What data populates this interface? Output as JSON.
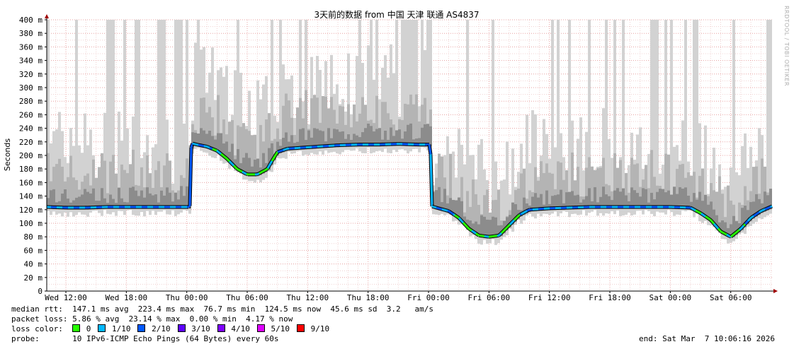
{
  "chart_data": {
    "type": "area",
    "title": "3天前的数据 from 中国 天津 联通 AS4837",
    "ylabel": "Seconds",
    "y_ticks": [
      {
        "v": 0,
        "label": "0"
      },
      {
        "v": 20,
        "label": "20 m"
      },
      {
        "v": 40,
        "label": "40 m"
      },
      {
        "v": 60,
        "label": "60 m"
      },
      {
        "v": 80,
        "label": "80 m"
      },
      {
        "v": 100,
        "label": "100 m"
      },
      {
        "v": 120,
        "label": "120 m"
      },
      {
        "v": 140,
        "label": "140 m"
      },
      {
        "v": 160,
        "label": "160 m"
      },
      {
        "v": 180,
        "label": "180 m"
      },
      {
        "v": 200,
        "label": "200 m"
      },
      {
        "v": 220,
        "label": "220 m"
      },
      {
        "v": 240,
        "label": "240 m"
      },
      {
        "v": 260,
        "label": "260 m"
      },
      {
        "v": 280,
        "label": "280 m"
      },
      {
        "v": 300,
        "label": "300 m"
      },
      {
        "v": 320,
        "label": "320 m"
      },
      {
        "v": 340,
        "label": "340 m"
      },
      {
        "v": 360,
        "label": "360 m"
      },
      {
        "v": 380,
        "label": "380 m"
      },
      {
        "v": 400,
        "label": "400 m"
      }
    ],
    "ylim": [
      0,
      400
    ],
    "x_ticks": [
      {
        "h": 0,
        "label": "Wed 12:00"
      },
      {
        "h": 6,
        "label": "Wed 18:00"
      },
      {
        "h": 12,
        "label": "Thu 00:00"
      },
      {
        "h": 18,
        "label": "Thu 06:00"
      },
      {
        "h": 24,
        "label": "Thu 12:00"
      },
      {
        "h": 30,
        "label": "Thu 18:00"
      },
      {
        "h": 36,
        "label": "Fri 00:00"
      },
      {
        "h": 42,
        "label": "Fri 06:00"
      },
      {
        "h": 48,
        "label": "Fri 12:00"
      },
      {
        "h": 54,
        "label": "Fri 18:00"
      },
      {
        "h": 60,
        "label": "Sat 00:00"
      },
      {
        "h": 66,
        "label": "Sat 06:00"
      }
    ],
    "xlim_hours": [
      -1.9,
      70.1
    ],
    "median_rtt_ms": [
      [
        -1.9,
        124
      ],
      [
        0,
        123
      ],
      [
        2,
        123
      ],
      [
        4,
        124
      ],
      [
        6,
        124
      ],
      [
        8,
        124
      ],
      [
        10,
        124
      ],
      [
        12.3,
        124
      ],
      [
        12.4,
        170
      ],
      [
        12.45,
        218
      ],
      [
        13,
        216
      ],
      [
        14,
        213
      ],
      [
        15,
        207
      ],
      [
        16,
        195
      ],
      [
        17,
        180
      ],
      [
        18,
        172
      ],
      [
        19,
        172
      ],
      [
        20,
        180
      ],
      [
        20.5,
        193
      ],
      [
        21,
        205
      ],
      [
        22,
        210
      ],
      [
        23,
        211
      ],
      [
        25,
        213
      ],
      [
        27,
        215
      ],
      [
        29,
        216
      ],
      [
        31,
        216
      ],
      [
        33,
        217
      ],
      [
        35,
        216
      ],
      [
        36.2,
        216
      ],
      [
        36.25,
        140
      ],
      [
        36.3,
        125
      ],
      [
        37,
        122
      ],
      [
        38,
        118
      ],
      [
        39,
        108
      ],
      [
        40,
        92
      ],
      [
        41,
        82
      ],
      [
        42,
        80
      ],
      [
        43,
        82
      ],
      [
        44,
        97
      ],
      [
        45,
        112
      ],
      [
        46,
        120
      ],
      [
        48,
        122
      ],
      [
        50,
        123
      ],
      [
        52,
        124
      ],
      [
        54,
        124
      ],
      [
        56,
        124
      ],
      [
        58,
        124
      ],
      [
        60,
        124
      ],
      [
        62,
        123
      ],
      [
        63,
        115
      ],
      [
        64,
        105
      ],
      [
        65,
        88
      ],
      [
        66,
        80
      ],
      [
        67,
        92
      ],
      [
        68,
        108
      ],
      [
        69,
        118
      ],
      [
        70.1,
        125
      ]
    ],
    "loss_green_ranges_hours": [
      [
        14.5,
        21
      ],
      [
        38.6,
        45
      ],
      [
        62.5,
        67.3
      ]
    ],
    "legend": [
      {
        "label": "0",
        "color": "#26ff00"
      },
      {
        "label": "1/10",
        "color": "#00b8ff"
      },
      {
        "label": "2/10",
        "color": "#0059ff"
      },
      {
        "label": "3/10",
        "color": "#5e00ff"
      },
      {
        "label": "4/10",
        "color": "#7e00ff"
      },
      {
        "label": "5/10",
        "color": "#dd00ff"
      },
      {
        "label": "9/10",
        "color": "#ff0000"
      }
    ],
    "watermark": "RRDTOOL / TOBI OETIKER"
  },
  "stats": {
    "median_rtt": "median rtt:  147.1 ms avg  223.4 ms max  76.7 ms min  124.5 ms now  45.6 ms sd  3.2   am/s",
    "packet_loss": "packet loss: 5.86 % avg  23.14 % max  0.00 % min  4.17 % now",
    "loss_color_label": "loss color:",
    "probe": "probe:       10 IPv6-ICMP Echo Pings (64 Bytes) every 60s",
    "end": "end: Sat Mar  7 10:06:16 2026"
  }
}
